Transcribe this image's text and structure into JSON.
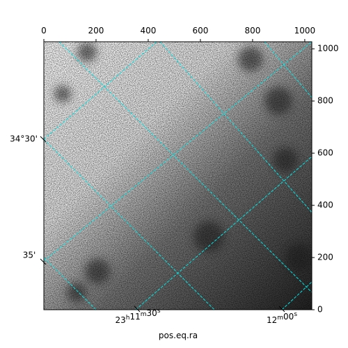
{
  "chart_data": {
    "type": "image",
    "xlabel": "pos.eq.ra",
    "xlim": [
      0,
      1027
    ],
    "ylim": [
      0,
      1027
    ],
    "xticks": [
      0,
      200,
      400,
      600,
      800,
      1000
    ],
    "yticks": [
      0,
      200,
      400,
      600,
      800,
      1000
    ],
    "ra_ticks": [
      [
        [
          "23",
          "h"
        ],
        [
          "11",
          "m"
        ],
        [
          "30",
          "s"
        ]
      ],
      [
        [
          "12",
          "m"
        ],
        [
          "00",
          "s"
        ]
      ]
    ],
    "dec_ticks": [
      "34°30'",
      "35'"
    ]
  }
}
